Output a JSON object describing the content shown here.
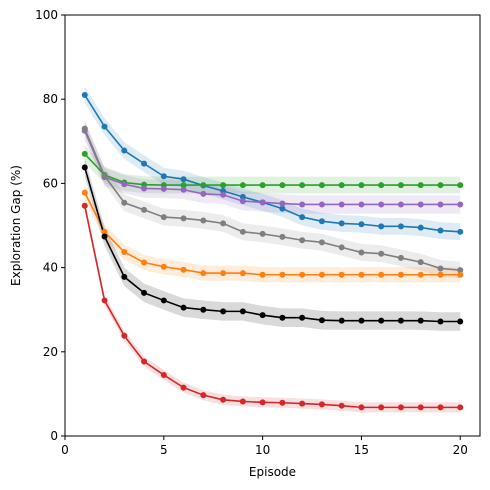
{
  "chart_data": {
    "type": "line",
    "xlabel": "Episode",
    "ylabel": "Exploration Gap (%)",
    "xlim": [
      0,
      21
    ],
    "ylim": [
      0,
      100
    ],
    "xticks": [
      0,
      5,
      10,
      15,
      20
    ],
    "yticks": [
      0,
      20,
      40,
      60,
      80,
      100
    ],
    "grid": false,
    "legend": "none",
    "marker": "circle",
    "shaded_band": "confidence interval around each series",
    "x": [
      1,
      2,
      3,
      4,
      5,
      6,
      7,
      8,
      9,
      10,
      11,
      12,
      13,
      14,
      15,
      16,
      17,
      18,
      19,
      20
    ],
    "series": [
      {
        "color": "#1f77b4",
        "band": 2.0,
        "values": [
          81,
          73.5,
          67.8,
          64.7,
          61.7,
          61,
          59.5,
          58.2,
          56.8,
          55.5,
          54,
          52,
          51,
          50.5,
          50.3,
          49.8,
          49.8,
          49.5,
          48.8,
          48.5
        ]
      },
      {
        "color": "#2ca02c",
        "band": 2.0,
        "values": [
          67,
          62,
          60.2,
          59.7,
          59.6,
          59.6,
          59.6,
          59.6,
          59.6,
          59.6,
          59.6,
          59.6,
          59.6,
          59.6,
          59.6,
          59.6,
          59.6,
          59.6,
          59.6,
          59.6
        ]
      },
      {
        "color": "#9467bd",
        "band": 2.2,
        "values": [
          72.5,
          61.5,
          59.8,
          58.8,
          58.7,
          58.5,
          57.5,
          57.3,
          55.8,
          55.5,
          55.2,
          55,
          55,
          55,
          55,
          55,
          55,
          55,
          55,
          55
        ]
      },
      {
        "color": "#7f7f7f",
        "band": 2.0,
        "values": [
          73,
          61.8,
          55.4,
          53.7,
          52,
          51.7,
          51.2,
          50.5,
          48.5,
          48,
          47.3,
          46.5,
          46,
          44.8,
          43.6,
          43.3,
          42.3,
          41.3,
          39.8,
          39.4
        ]
      },
      {
        "color": "#ff7f0e",
        "band": 1.8,
        "values": [
          57.8,
          48.5,
          43.7,
          41.2,
          40.2,
          39.5,
          38.7,
          38.7,
          38.7,
          38.3,
          38.3,
          38.3,
          38.3,
          38.3,
          38.3,
          38.3,
          38.3,
          38.3,
          38.3,
          38.3
        ]
      },
      {
        "color": "#000000",
        "band": 2.2,
        "values": [
          63.8,
          47.4,
          37.8,
          34,
          32.2,
          30.5,
          30,
          29.6,
          29.6,
          28.7,
          28.1,
          28.1,
          27.5,
          27.4,
          27.4,
          27.4,
          27.4,
          27.4,
          27.2,
          27.2
        ]
      },
      {
        "color": "#d62728",
        "band": 1.2,
        "values": [
          54.7,
          32.2,
          23.8,
          17.7,
          14.5,
          11.5,
          9.7,
          8.6,
          8.2,
          8,
          7.9,
          7.7,
          7.5,
          7.2,
          6.8,
          6.8,
          6.8,
          6.8,
          6.8,
          6.8
        ]
      }
    ]
  }
}
